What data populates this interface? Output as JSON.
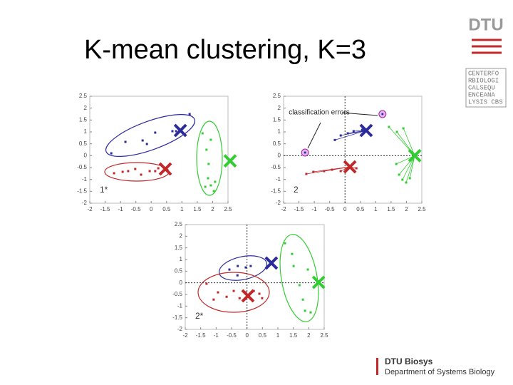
{
  "title": "K-mean clustering, K=3",
  "logo": {
    "name": "DTU",
    "center_rows": [
      "CENTERFO",
      "RBIOLOGI",
      "CALSEQU",
      "ENCEANA",
      "LYSIS CBS"
    ]
  },
  "footer": {
    "unit": "DTU Biosys",
    "department": "Department of Systems Biology"
  },
  "annotation": "classification errors",
  "panels": [
    {
      "label": "1*",
      "zero_axes": false,
      "xlim": [
        -2,
        2.5
      ],
      "ylim": [
        -2,
        2.5
      ],
      "xticks": [
        -2,
        -1.5,
        -1,
        -0.5,
        0,
        0.5,
        1,
        1.5,
        2,
        2.5
      ],
      "yticks": [
        -2,
        -1.5,
        -1,
        -0.5,
        0,
        0.5,
        1,
        1.5,
        2,
        2.5
      ],
      "clusters": [
        {
          "color": "#2b2b9a",
          "x": [
            -1.3,
            -0.84,
            -0.28,
            -0.14,
            0.13,
            0.69,
            0.81,
            1.25
          ],
          "y": [
            0.1,
            0.58,
            0.64,
            0.49,
            0.97,
            1.03,
            1.03,
            1.75
          ],
          "centroid": [
            0.95,
            1.06
          ]
        },
        {
          "color": "#c0282a",
          "x": [
            -1.21,
            -0.93,
            -0.75,
            -0.52,
            -0.33,
            -0.05,
            0.13,
            0.23
          ],
          "y": [
            -0.74,
            -0.68,
            -0.65,
            -0.56,
            -0.8,
            -0.65,
            -0.65,
            -0.53
          ],
          "centroid": [
            0.46,
            -0.56
          ]
        },
        {
          "color": "#33cc33",
          "x": [
            1.67,
            1.94,
            1.8,
            1.87,
            1.85,
            1.76,
            1.94,
            2.04,
            2.08
          ],
          "y": [
            0.94,
            0.67,
            0.25,
            -0.35,
            -0.95,
            -1.31,
            -1.25,
            -1.49,
            -1.1
          ],
          "centroid": [
            2.57,
            -0.22
          ]
        }
      ]
    },
    {
      "label": "2",
      "zero_axes": true,
      "xlim": [
        -2,
        2.5
      ],
      "ylim": [
        -2,
        2.5
      ],
      "xticks": [
        -2,
        -1.5,
        -1,
        -0.5,
        0,
        0.5,
        1,
        1.5,
        2,
        2.5
      ],
      "yticks": [
        -2,
        -1.5,
        -1,
        -0.5,
        0,
        0.5,
        1,
        1.5,
        2,
        2.5
      ],
      "errors": {
        "x": [
          -1.3,
          1.22
        ],
        "y": [
          0.13,
          1.75
        ]
      },
      "clusters": [
        {
          "color": "#2b2b9a",
          "x": [
            -0.33,
            -0.14,
            0.09,
            0.28,
            0.56
          ],
          "y": [
            0.66,
            0.85,
            0.94,
            1.03,
            1.09
          ],
          "centroid": [
            0.69,
            1.06
          ]
        },
        {
          "color": "#c0282a",
          "x": [
            -1.26,
            -1.03,
            -0.68,
            -0.42,
            -0.14,
            0.37
          ],
          "y": [
            -0.77,
            -0.68,
            -0.65,
            -0.59,
            -0.65,
            -0.53
          ],
          "centroid": [
            0.16,
            -0.47
          ]
        },
        {
          "color": "#33cc33",
          "x": [
            1.43,
            1.69,
            1.9,
            1.67,
            1.76,
            1.87,
            1.99,
            2.11
          ],
          "y": [
            1.21,
            1.0,
            1.15,
            -0.35,
            -0.8,
            -1.01,
            -1.13,
            -0.95
          ],
          "centroid": [
            2.27,
            0.0
          ]
        }
      ]
    },
    {
      "label": "2*",
      "zero_axes": true,
      "xlim": [
        -2,
        2.5
      ],
      "ylim": [
        -2,
        2.5
      ],
      "xticks": [
        -2,
        -1.5,
        -1,
        -0.5,
        0,
        0.5,
        1,
        1.5,
        2,
        2.5
      ],
      "yticks": [
        -2,
        -1.5,
        -1,
        -0.5,
        0,
        0.5,
        1,
        1.5,
        2,
        2.5
      ],
      "clusters": [
        {
          "color": "#2b2b9a",
          "x": [
            -0.57,
            -0.3,
            -0.31,
            -0.04,
            0.12
          ],
          "y": [
            0.57,
            0.72,
            0.32,
            0.66,
            0.72
          ],
          "centroid": [
            0.79,
            0.85
          ]
        },
        {
          "color": "#c0282a",
          "x": [
            -1.31,
            -1.08,
            -0.94,
            -0.66,
            -0.43,
            -0.24,
            -0.04,
            0.22,
            0.4,
            0.49
          ],
          "y": [
            -0.04,
            -0.72,
            -0.41,
            -0.6,
            -0.35,
            -0.66,
            -0.41,
            -0.35,
            -0.47,
            -0.66
          ],
          "centroid": [
            0.03,
            -0.56
          ]
        },
        {
          "color": "#33cc33",
          "x": [
            1.23,
            1.46,
            1.51,
            1.7,
            1.81,
            1.88,
            2.06,
            1.97
          ],
          "y": [
            1.7,
            1.24,
            0.72,
            -0.1,
            -0.72,
            -1.2,
            -1.27,
            0.57
          ],
          "centroid": [
            2.32,
            0.02
          ]
        }
      ]
    }
  ]
}
